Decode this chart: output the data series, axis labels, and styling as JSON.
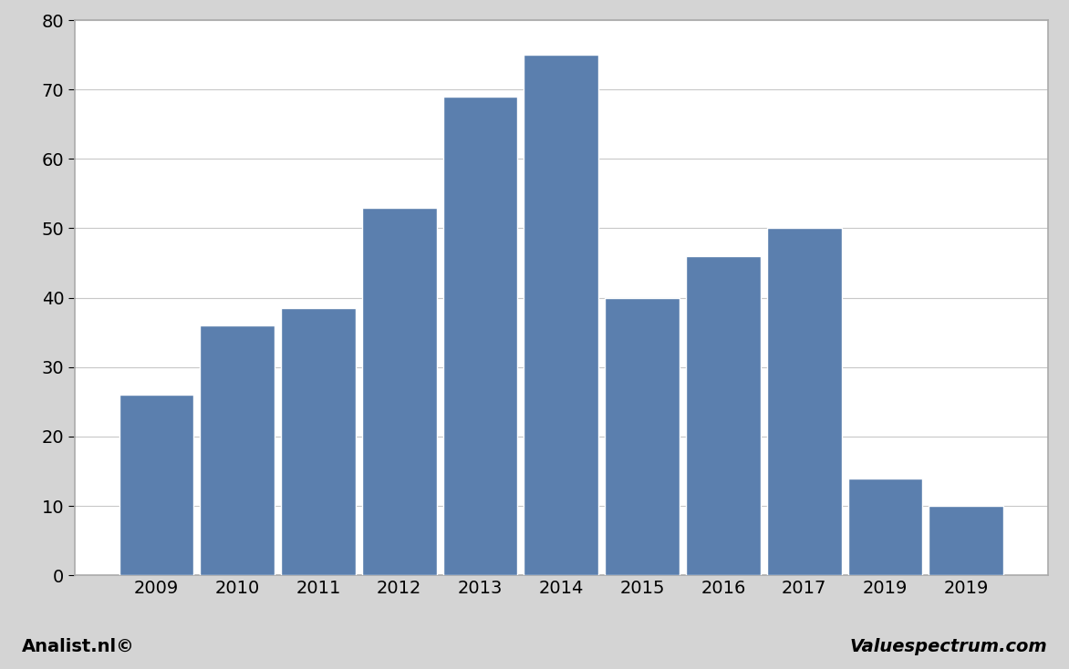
{
  "categories": [
    "2009",
    "2010",
    "2011",
    "2012",
    "2013",
    "2014",
    "2015",
    "2016",
    "2017",
    "2019",
    "2019"
  ],
  "values": [
    26,
    36,
    38.5,
    53,
    69,
    75,
    40,
    46,
    50,
    14,
    10
  ],
  "bar_color": "#5b7fae",
  "bar_edge_color": "#ffffff",
  "ylim": [
    0,
    80
  ],
  "yticks": [
    0,
    10,
    20,
    30,
    40,
    50,
    60,
    70,
    80
  ],
  "figure_bg_color": "#d4d4d4",
  "plot_bg_color": "#ffffff",
  "grid_color": "#c8c8c8",
  "plot_border_color": "#aaaaaa",
  "footer_left": "Analist.nl©",
  "footer_right": "Valuespectrum.com",
  "footer_fontsize": 14,
  "tick_fontsize": 14,
  "bar_width": 0.92
}
